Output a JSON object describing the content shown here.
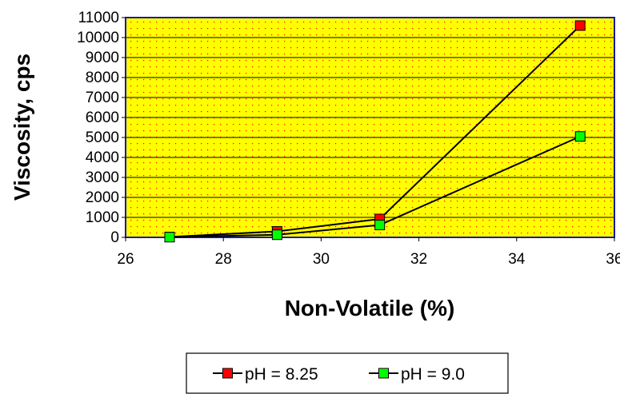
{
  "chart_data": {
    "type": "line",
    "xlabel": "Non-Volatile (%)",
    "ylabel": "Viscosity, cps",
    "xlim": [
      26,
      36
    ],
    "ylim": [
      0,
      11000
    ],
    "x_ticks": [
      "26",
      "28",
      "30",
      "32",
      "34",
      "36"
    ],
    "y_ticks": [
      "0",
      "1000",
      "2000",
      "3000",
      "4000",
      "5000",
      "6000",
      "7000",
      "8000",
      "9000",
      "10000",
      "11000"
    ],
    "grid": "horizontal",
    "legend_position": "bottom",
    "plot_background": "#ffff00",
    "series": [
      {
        "name": "pH = 8.25",
        "color": "#ff0000",
        "points": [
          {
            "x": 26.9,
            "y": 20
          },
          {
            "x": 29.1,
            "y": 300
          },
          {
            "x": 31.2,
            "y": 920
          },
          {
            "x": 35.3,
            "y": 10600
          }
        ]
      },
      {
        "name": "pH = 9.0",
        "color": "#00ff00",
        "points": [
          {
            "x": 26.9,
            "y": 10
          },
          {
            "x": 29.1,
            "y": 130
          },
          {
            "x": 31.2,
            "y": 620
          },
          {
            "x": 35.3,
            "y": 5050
          }
        ]
      }
    ]
  }
}
